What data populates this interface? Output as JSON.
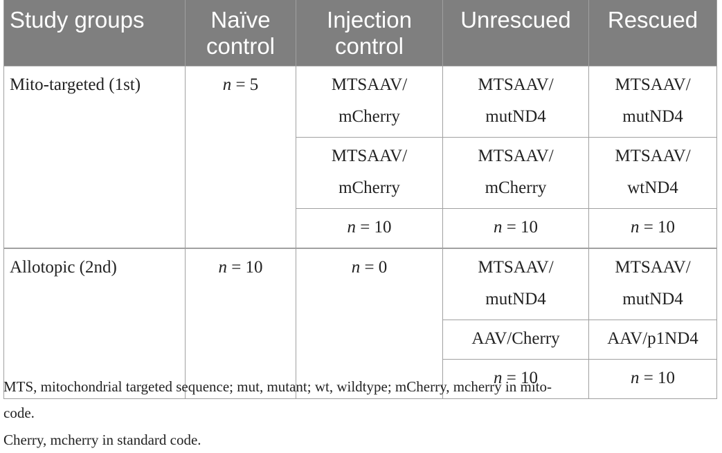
{
  "table": {
    "headers": [
      {
        "line1": "Study groups",
        "line2": ""
      },
      {
        "line1": "Naïve",
        "line2": "control"
      },
      {
        "line1": "Injection",
        "line2": "control"
      },
      {
        "line1": "Unrescued",
        "line2": ""
      },
      {
        "line1": "Rescued",
        "line2": ""
      }
    ],
    "groups": [
      {
        "name": "Mito-targeted (1st)",
        "naive": {
          "n_label": "n",
          "value": "= 5"
        },
        "rows": [
          {
            "injection": [
              "MTSAAV/",
              "mCherry"
            ],
            "unrescued": [
              "MTSAAV/",
              "mutND4"
            ],
            "rescued": [
              "MTSAAV/",
              "mutND4"
            ]
          },
          {
            "injection": [
              "MTSAAV/",
              "mCherry"
            ],
            "unrescued": [
              "MTSAAV/",
              "mCherry"
            ],
            "rescued": [
              "MTSAAV/",
              "wtND4"
            ]
          }
        ],
        "counts": {
          "injection": {
            "n_label": "n",
            "value": "= 10"
          },
          "unrescued": {
            "n_label": "n",
            "value": "= 10"
          },
          "rescued": {
            "n_label": "n",
            "value": "= 10"
          }
        }
      },
      {
        "name": "Allotopic (2nd)",
        "naive": {
          "n_label": "n",
          "value": "= 10"
        },
        "injection": {
          "n_label": "n",
          "value": "= 0"
        },
        "rows": [
          {
            "unrescued": [
              "MTSAAV/",
              "mutND4"
            ],
            "rescued": [
              "MTSAAV/",
              "mutND4"
            ]
          },
          {
            "unrescued": [
              "AAV/Cherry"
            ],
            "rescued": [
              "AAV/p1ND4"
            ]
          }
        ],
        "counts": {
          "unrescued": {
            "n_label": "n",
            "value": "= 10"
          },
          "rescued": {
            "n_label": "n",
            "value": "= 10"
          }
        }
      }
    ]
  },
  "footnotes": {
    "line1": "MTS, mitochondrial targeted sequence; mut, mutant; wt, wildtype; mCherry, mcherry in mito-",
    "line2": "code.",
    "line3": "Cherry, mcherry in standard code."
  },
  "colors": {
    "header_bg": "#7f7f7f",
    "header_text": "#ffffff",
    "border": "#a0a0a0",
    "text": "#222222"
  }
}
